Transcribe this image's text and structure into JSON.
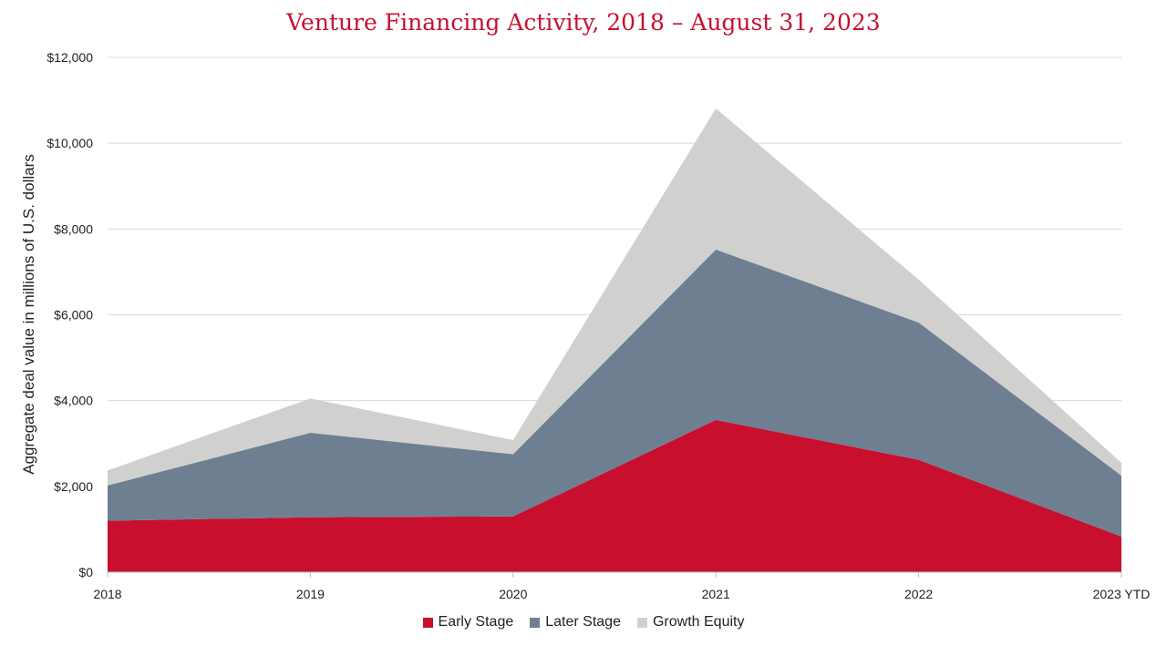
{
  "chart_data": {
    "type": "area",
    "stacked": true,
    "title": "Venture Financing Activity, 2018 – August 31, 2023",
    "ylabel": "Aggregate deal value in millions of U.S. dollars",
    "xlabel": "",
    "categories": [
      "2018",
      "2019",
      "2020",
      "2021",
      "2022",
      "2023 YTD"
    ],
    "ylim": [
      0,
      12000
    ],
    "yticks": [
      0,
      2000,
      4000,
      6000,
      8000,
      10000,
      12000
    ],
    "ytick_labels": [
      "$0",
      "$2,000",
      "$4,000",
      "$6,000",
      "$8,000",
      "$10,000",
      "$12,000"
    ],
    "grid": true,
    "legend_position": "bottom",
    "series": [
      {
        "name": "Early Stage",
        "color": "#c8102e",
        "values": [
          1200,
          1280,
          1300,
          3550,
          2620,
          830
        ]
      },
      {
        "name": "Later Stage",
        "color": "#6e7f91",
        "values": [
          820,
          1970,
          1450,
          3970,
          3200,
          1420
        ]
      },
      {
        "name": "Growth Equity",
        "color": "#d0d0ce",
        "values": [
          350,
          800,
          330,
          3290,
          1000,
          300
        ]
      }
    ]
  }
}
